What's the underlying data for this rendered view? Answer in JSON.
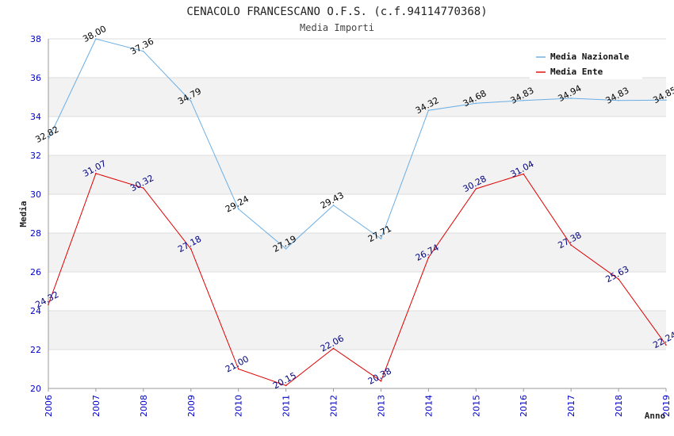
{
  "chart_data": {
    "type": "line",
    "title": "CENACOLO FRANCESCANO O.F.S. (c.f.94114770368)",
    "subtitle": "Media Importi",
    "xlabel": "Anno",
    "ylabel": "Media",
    "ylim": [
      20,
      38
    ],
    "yticks": [
      "20",
      "22",
      "24",
      "26",
      "28",
      "30",
      "32",
      "34",
      "36",
      "38"
    ],
    "categories": [
      "2006",
      "2007",
      "2008",
      "2009",
      "2010",
      "2011",
      "2012",
      "2013",
      "2014",
      "2015",
      "2016",
      "2017",
      "2018",
      "2019"
    ],
    "series": [
      {
        "name": "Media Nazionale",
        "color": "#6aaee4",
        "label_color": "#000000",
        "values": [
          32.82,
          38.0,
          37.36,
          34.79,
          29.24,
          27.19,
          29.43,
          27.71,
          34.32,
          34.68,
          34.83,
          34.94,
          34.83,
          34.85
        ],
        "labels": [
          "32.82",
          "38.00",
          "37.36",
          "34.79",
          "29.24",
          "27.19",
          "29.43",
          "27.71",
          "34.32",
          "34.68",
          "34.83",
          "34.94",
          "34.83",
          "34.85"
        ]
      },
      {
        "name": "Media Ente",
        "color": "#e00000",
        "label_color": "#000080",
        "values": [
          24.32,
          31.07,
          30.32,
          27.18,
          21.0,
          20.15,
          22.06,
          20.38,
          26.74,
          30.28,
          31.04,
          27.38,
          25.63,
          22.24
        ],
        "labels": [
          "24.32",
          "31.07",
          "30.32",
          "27.18",
          "21.00",
          "20.15",
          "22.06",
          "20.38",
          "26.74",
          "30.28",
          "31.04",
          "27.38",
          "25.63",
          "22.24"
        ]
      }
    ],
    "legend_position": "top-right",
    "grid": true
  },
  "colors": {
    "tick_color": "#0000cc",
    "band_fill": "#f2f2f2",
    "grid_line": "#dddddd"
  }
}
